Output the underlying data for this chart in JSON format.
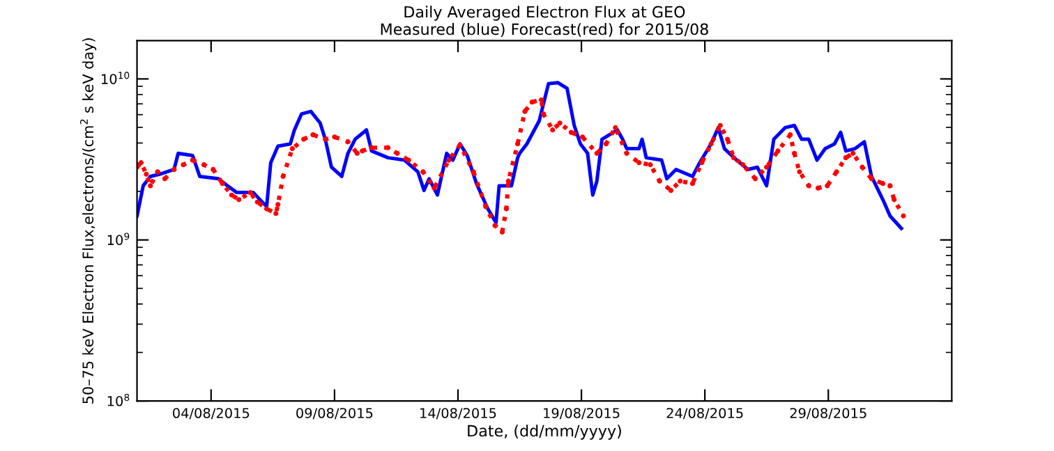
{
  "chart_data": {
    "type": "line",
    "title": "Daily Averaged Electron Flux at GEO",
    "subtitle": "Measured (blue) Forecast(red) for 2015/08",
    "xlabel": "Date, (dd/mm/yyyy)",
    "ylabel": "50–75 keV Electron Flux,electrons/(cm$^{2}$ s keV day)",
    "log": "y",
    "grid": false,
    "xlim": [
      "2015-08-01",
      "2015-09-03"
    ],
    "xticks": [
      {
        "value": "2015-08-04",
        "label": "04/08/2015"
      },
      {
        "value": "2015-08-09",
        "label": "09/08/2015"
      },
      {
        "value": "2015-08-14",
        "label": "14/08/2015"
      },
      {
        "value": "2015-08-19",
        "label": "19/08/2015"
      },
      {
        "value": "2015-08-24",
        "label": "24/08/2015"
      },
      {
        "value": "2015-08-29",
        "label": "29/08/2015"
      }
    ],
    "ylim": [
      100000000.0,
      17300000000.0
    ],
    "yticks": [
      {
        "value": 100000000.0,
        "label": "10$^{8}$"
      },
      {
        "value": 1000000000.0,
        "label": "10$^{9}$"
      },
      {
        "value": 10000000000.0,
        "label": "10$^{10}$"
      }
    ],
    "series": [
      {
        "color": "#0000ff",
        "marker": "none",
        "line_style": "solid",
        "x": [
          "2015-08-01T00:00",
          "2015-08-01T06:00",
          "2015-08-01T13:00",
          "2015-08-01T22:00",
          "2015-08-02T12:00",
          "2015-08-02T16:00",
          "2015-08-03T06:00",
          "2015-08-03T13:00",
          "2015-08-04T07:00",
          "2015-08-04T16:00",
          "2015-08-05T01:00",
          "2015-08-05T17:00",
          "2015-08-06T06:00",
          "2015-08-06T10:00",
          "2015-08-06T17:00",
          "2015-08-07T05:00",
          "2015-08-07T09:00",
          "2015-08-07T16:00",
          "2015-08-08T01:00",
          "2015-08-08T10:00",
          "2015-08-08T15:00",
          "2015-08-08T21:00",
          "2015-08-09T07:00",
          "2015-08-09T13:00",
          "2015-08-09T20:00",
          "2015-08-10T07:00",
          "2015-08-10T12:00",
          "2015-08-11T04:00",
          "2015-08-11T20:00",
          "2015-08-12T09:00",
          "2015-08-12T15:00",
          "2015-08-12T20:00",
          "2015-08-13T04:00",
          "2015-08-13T13:00",
          "2015-08-13T19:00",
          "2015-08-14T02:00",
          "2015-08-14T09:00",
          "2015-08-14T18:00",
          "2015-08-15T05:00",
          "2015-08-15T13:00",
          "2015-08-15T16:00",
          "2015-08-16T04:00",
          "2015-08-16T10:00",
          "2015-08-16T12:00",
          "2015-08-16T19:00",
          "2015-08-17T07:00",
          "2015-08-17T16:00",
          "2015-08-18T01:00",
          "2015-08-18T10:00",
          "2015-08-18T17:00",
          "2015-08-18T23:00",
          "2015-08-19T06:00",
          "2015-08-19T11:00",
          "2015-08-19T15:00",
          "2015-08-19T20:00",
          "2015-08-20T11:00",
          "2015-08-20T16:00",
          "2015-08-20T20:00",
          "2015-08-21T08:00",
          "2015-08-21T11:00",
          "2015-08-21T15:00",
          "2015-08-22T06:00",
          "2015-08-22T11:00",
          "2015-08-22T20:00",
          "2015-08-23T12:00",
          "2015-08-23T19:00",
          "2015-08-24T06:00",
          "2015-08-24T13:00",
          "2015-08-24T19:00",
          "2015-08-25T07:00",
          "2015-08-25T18:00",
          "2015-08-26T03:00",
          "2015-08-26T12:00",
          "2015-08-26T19:00",
          "2015-08-27T06:00",
          "2015-08-27T15:00",
          "2015-08-27T22:00",
          "2015-08-28T05:00",
          "2015-08-28T13:00",
          "2015-08-28T21:00",
          "2015-08-29T06:00",
          "2015-08-29T12:00",
          "2015-08-29T17:00",
          "2015-08-30T02:00",
          "2015-08-30T11:00",
          "2015-08-30T18:00",
          "2015-08-31T05:00",
          "2015-08-31T12:00",
          "2015-08-31T23:00"
        ],
        "values": [
          1410000000.0,
          2170000000.0,
          2480000000.0,
          2560000000.0,
          2740000000.0,
          3450000000.0,
          3340000000.0,
          2480000000.0,
          2400000000.0,
          2170000000.0,
          1970000000.0,
          1970000000.0,
          1610000000.0,
          3020000000.0,
          3820000000.0,
          3950000000.0,
          4820000000.0,
          6070000000.0,
          6280000000.0,
          5320000000.0,
          4220000000.0,
          2830000000.0,
          2480000000.0,
          3450000000.0,
          4220000000.0,
          4820000000.0,
          3570000000.0,
          3240000000.0,
          3130000000.0,
          2650000000.0,
          2030000000.0,
          2400000000.0,
          1900000000.0,
          3450000000.0,
          3130000000.0,
          3950000000.0,
          3340000000.0,
          2240000000.0,
          1560000000.0,
          1280000000.0,
          2170000000.0,
          2170000000.0,
          3240000000.0,
          3450000000.0,
          3950000000.0,
          5500000000.0,
          9350000000.0,
          9480000000.0,
          8750000000.0,
          5140000000.0,
          3950000000.0,
          3450000000.0,
          1900000000.0,
          2320000000.0,
          4220000000.0,
          4820000000.0,
          4220000000.0,
          3690000000.0,
          3690000000.0,
          4220000000.0,
          3240000000.0,
          3130000000.0,
          2400000000.0,
          2740000000.0,
          2480000000.0,
          3020000000.0,
          3950000000.0,
          4980000000.0,
          3690000000.0,
          3130000000.0,
          2740000000.0,
          2830000000.0,
          2170000000.0,
          4220000000.0,
          4980000000.0,
          5140000000.0,
          4220000000.0,
          4220000000.0,
          3130000000.0,
          3690000000.0,
          3950000000.0,
          4660000000.0,
          3570000000.0,
          3690000000.0,
          4070000000.0,
          2480000000.0,
          1780000000.0,
          1410000000.0,
          1180000000.0
        ]
      },
      {
        "color": "#ff0000",
        "marker": "circle",
        "line_style": "dotted",
        "x": [
          "2015-08-01T00:00",
          "2015-08-01T04:00",
          "2015-08-01T09:00",
          "2015-08-01T13:00",
          "2015-08-01T20:00",
          "2015-08-02T03:00",
          "2015-08-02T12:00",
          "2015-08-02T21:00",
          "2015-08-03T06:00",
          "2015-08-03T17:00",
          "2015-08-04T02:00",
          "2015-08-04T11:00",
          "2015-08-04T20:00",
          "2015-08-05T03:00",
          "2015-08-05T14:00",
          "2015-08-05T21:00",
          "2015-08-06T06:00",
          "2015-08-06T15:00",
          "2015-08-06T17:00",
          "2015-08-06T22:00",
          "2015-08-07T07:00",
          "2015-08-07T18:00",
          "2015-08-08T03:00",
          "2015-08-08T15:00",
          "2015-08-09T00:00",
          "2015-08-09T13:00",
          "2015-08-09T22:00",
          "2015-08-10T03:00",
          "2015-08-10T12:00",
          "2015-08-11T04:00",
          "2015-08-11T13:00",
          "2015-08-12T00:00",
          "2015-08-12T14:00",
          "2015-08-13T01:00",
          "2015-08-13T15:00",
          "2015-08-14T02:00",
          "2015-08-14T15:00",
          "2015-08-15T03:00",
          "2015-08-15T12:00",
          "2015-08-15T19:00",
          "2015-08-15T23:00",
          "2015-08-16T01:00",
          "2015-08-16T10:00",
          "2015-08-16T17:00",
          "2015-08-17T00:00",
          "2015-08-17T09:00",
          "2015-08-17T11:00",
          "2015-08-17T20:00",
          "2015-08-18T03:00",
          "2015-08-18T14:00",
          "2015-08-19T01:00",
          "2015-08-19T15:00",
          "2015-08-20T00:00",
          "2015-08-20T09:00",
          "2015-08-20T20:00",
          "2015-08-21T08:00",
          "2015-08-21T19:00",
          "2015-08-22T04:00",
          "2015-08-22T15:00",
          "2015-08-23T00:00",
          "2015-08-23T12:00",
          "2015-08-23T21:00",
          "2015-08-24T06:00",
          "2015-08-24T15:00",
          "2015-08-24T22:00",
          "2015-08-25T04:00",
          "2015-08-25T13:00",
          "2015-08-26T01:00",
          "2015-08-26T12:00",
          "2015-08-26T23:00",
          "2015-08-27T11:00",
          "2015-08-27T15:00",
          "2015-08-27T20:00",
          "2015-08-28T05:00",
          "2015-08-28T14:00",
          "2015-08-28T23:00",
          "2015-08-29T08:00",
          "2015-08-29T17:00",
          "2015-08-30T00:00",
          "2015-08-30T09:00",
          "2015-08-30T18:00",
          "2015-08-31T05:00",
          "2015-08-31T12:00",
          "2015-08-31T16:00",
          "2015-09-01T01:00"
        ],
        "values": [
          2830000000.0,
          3020000000.0,
          2560000000.0,
          2170000000.0,
          2650000000.0,
          2400000000.0,
          2740000000.0,
          2930000000.0,
          3130000000.0,
          2930000000.0,
          2740000000.0,
          2240000000.0,
          1900000000.0,
          1780000000.0,
          1970000000.0,
          1720000000.0,
          1560000000.0,
          1460000000.0,
          1660000000.0,
          2480000000.0,
          3690000000.0,
          4220000000.0,
          4500000000.0,
          4220000000.0,
          4360000000.0,
          4070000000.0,
          3450000000.0,
          3570000000.0,
          3740000000.0,
          3740000000.0,
          3450000000.0,
          3130000000.0,
          2650000000.0,
          2100000000.0,
          3130000000.0,
          3890000000.0,
          2650000000.0,
          1610000000.0,
          1230000000.0,
          1120000000.0,
          1560000000.0,
          2320000000.0,
          3950000000.0,
          6280000000.0,
          7180000000.0,
          7410000000.0,
          6070000000.0,
          4820000000.0,
          5320000000.0,
          4660000000.0,
          4360000000.0,
          3450000000.0,
          3950000000.0,
          4980000000.0,
          3450000000.0,
          3020000000.0,
          2930000000.0,
          2320000000.0,
          2030000000.0,
          2320000000.0,
          2240000000.0,
          3020000000.0,
          3950000000.0,
          5140000000.0,
          4220000000.0,
          3240000000.0,
          2930000000.0,
          2400000000.0,
          2830000000.0,
          3570000000.0,
          4500000000.0,
          3450000000.0,
          2650000000.0,
          2170000000.0,
          2100000000.0,
          2170000000.0,
          2650000000.0,
          3240000000.0,
          3450000000.0,
          2830000000.0,
          2400000000.0,
          2240000000.0,
          2170000000.0,
          1780000000.0,
          1410000000.0
        ]
      }
    ]
  }
}
